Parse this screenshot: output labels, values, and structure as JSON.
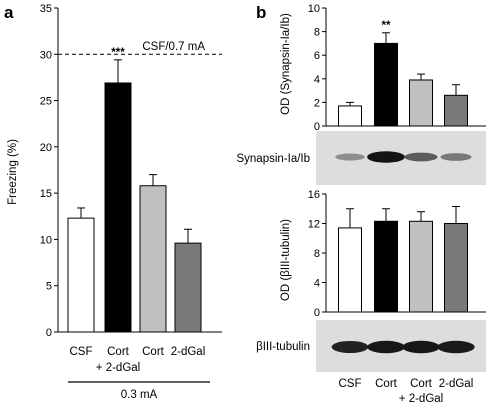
{
  "chart_data": [
    {
      "type": "bar",
      "panel": "a",
      "ylabel": "Freezing (%)",
      "ylim": [
        0,
        35
      ],
      "yticks": [
        0,
        5,
        10,
        15,
        20,
        25,
        30,
        35
      ],
      "categories": [
        "CSF",
        "Cort",
        "Cort",
        "2-dGal"
      ],
      "category_sublabel": "+ 2-dGal",
      "values": [
        12.3,
        26.9,
        15.8,
        9.6
      ],
      "errors": [
        1.1,
        2.5,
        1.2,
        1.5
      ],
      "colors": [
        "#ffffff",
        "#000000",
        "#c0c0c0",
        "#7a7a7a"
      ],
      "significance": {
        "index": 1,
        "label": "***"
      },
      "reference_line": {
        "value": 30,
        "label": "CSF/0.7 mA"
      },
      "xgroup_label": "0.3 mA"
    },
    {
      "type": "bar",
      "panel": "b",
      "ylabel": "OD (Synapsin-Ia/Ib)",
      "ylim": [
        0,
        10
      ],
      "yticks": [
        0,
        2,
        4,
        6,
        8,
        10
      ],
      "categories": [
        "CSF",
        "Cort",
        "Cort",
        "2-dGal"
      ],
      "values": [
        1.7,
        7.0,
        3.9,
        2.6
      ],
      "errors": [
        0.3,
        0.9,
        0.5,
        0.9
      ],
      "colors": [
        "#ffffff",
        "#000000",
        "#c0c0c0",
        "#7a7a7a"
      ],
      "significance": {
        "index": 1,
        "label": "**"
      },
      "blot_label": "Synapsin-Ia/Ib"
    },
    {
      "type": "bar",
      "panel": "b",
      "ylabel": "OD (βIII-tubulin)",
      "ylim": [
        0,
        16
      ],
      "yticks": [
        0,
        4,
        8,
        12,
        16
      ],
      "categories": [
        "CSF",
        "Cort",
        "Cort",
        "2-dGal"
      ],
      "category_sublabel": "+ 2-dGal",
      "values": [
        11.4,
        12.3,
        12.3,
        12.0
      ],
      "errors": [
        2.6,
        1.7,
        1.3,
        2.3
      ],
      "colors": [
        "#ffffff",
        "#000000",
        "#c0c0c0",
        "#7a7a7a"
      ],
      "blot_label": "βIII-tubulin"
    }
  ]
}
